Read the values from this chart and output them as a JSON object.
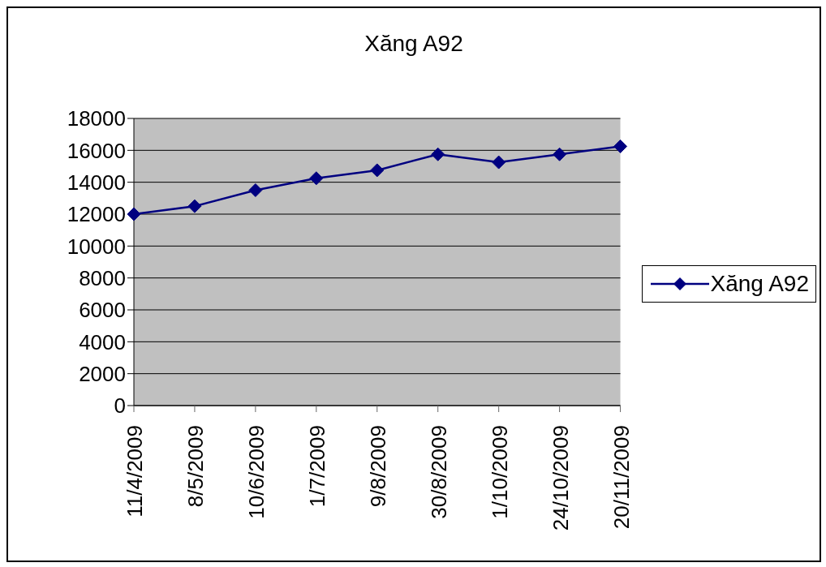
{
  "chart_data": {
    "type": "line",
    "title": "Xăng A92",
    "categories": [
      "11/4/2009",
      "8/5/2009",
      "10/6/2009",
      "1/7/2009",
      "9/8/2009",
      "30/8/2009",
      "1/10/2009",
      "24/10/2009",
      "20/11/2009"
    ],
    "series": [
      {
        "name": "Xăng A92",
        "color": "#000080",
        "values": [
          12000,
          12500,
          13500,
          14250,
          14750,
          15750,
          15250,
          15750,
          16250
        ]
      }
    ],
    "ylim": [
      0,
      18000
    ],
    "yticks": [
      0,
      2000,
      4000,
      6000,
      8000,
      10000,
      12000,
      14000,
      16000,
      18000
    ],
    "grid": "y",
    "legend": "right",
    "marker": "diamond",
    "line_style": "solid"
  }
}
